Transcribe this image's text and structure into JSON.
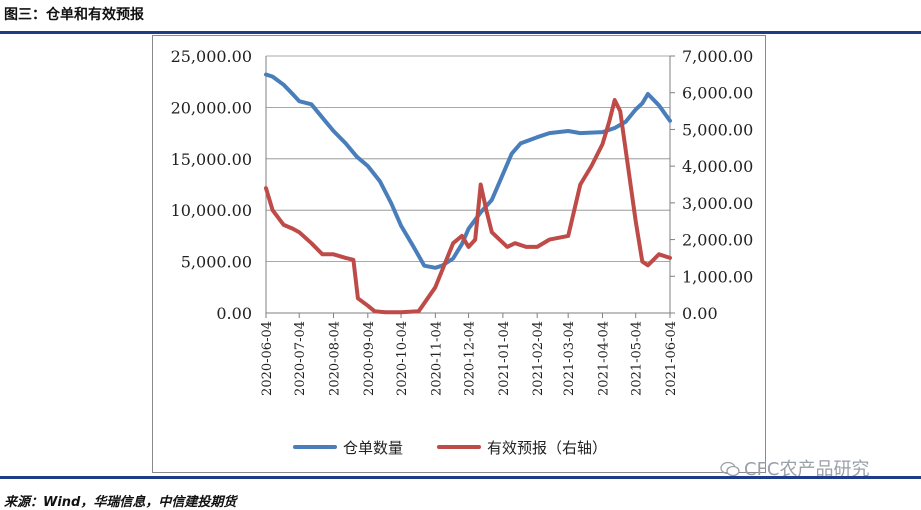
{
  "figure": {
    "title": "图三：仓单和有效预报",
    "source": "来源：Wind，华瑞信息，中信建投期货",
    "watermark": "CFC农产品研究",
    "watermark_icon": "wechat-icon"
  },
  "colors": {
    "series1": "#4a7ebb",
    "series2": "#be4b48",
    "accent": "#1f3c88"
  },
  "chart_data": {
    "type": "line",
    "grid": true,
    "legend_position": "bottom",
    "x_ticks": [
      "2020-06-04",
      "2020-07-04",
      "2020-08-04",
      "2020-09-04",
      "2020-10-04",
      "2020-11-04",
      "2020-12-04",
      "2021-01-04",
      "2021-02-04",
      "2021-03-04",
      "2021-04-04",
      "2021-05-04",
      "2021-06-04"
    ],
    "y_left": {
      "ylim": [
        0,
        25000
      ],
      "ticks": [
        "0.00",
        "5,000.00",
        "10,000.00",
        "15,000.00",
        "20,000.00",
        "25,000.00"
      ]
    },
    "y_right": {
      "ylim": [
        0,
        7000
      ],
      "ticks": [
        "0.00",
        "1,000.00",
        "2,000.00",
        "3,000.00",
        "4,000.00",
        "5,000.00",
        "6,000.00",
        "7,000.00"
      ]
    },
    "series": [
      {
        "name": "仓单数量",
        "axis": "left",
        "x": [
          "2020-06-04",
          "2020-06-10",
          "2020-06-20",
          "2020-06-28",
          "2020-07-04",
          "2020-07-15",
          "2020-07-25",
          "2020-08-04",
          "2020-08-15",
          "2020-08-25",
          "2020-09-04",
          "2020-09-15",
          "2020-09-25",
          "2020-10-04",
          "2020-10-15",
          "2020-10-25",
          "2020-11-04",
          "2020-11-10",
          "2020-11-20",
          "2020-11-28",
          "2020-12-04",
          "2020-12-15",
          "2020-12-25",
          "2021-01-04",
          "2021-01-12",
          "2021-01-20",
          "2021-02-04",
          "2021-02-15",
          "2021-03-04",
          "2021-03-15",
          "2021-04-04",
          "2021-04-15",
          "2021-04-25",
          "2021-05-04",
          "2021-05-10",
          "2021-05-15",
          "2021-05-25",
          "2021-06-04"
        ],
        "values": [
          23200,
          23000,
          22200,
          21300,
          20600,
          20300,
          19000,
          17700,
          16500,
          15200,
          14300,
          12800,
          10700,
          8500,
          6500,
          4600,
          4400,
          4600,
          5300,
          6700,
          8200,
          9800,
          11000,
          13500,
          15500,
          16500,
          17100,
          17500,
          17700,
          17500,
          17600,
          18000,
          18600,
          19800,
          20400,
          21300,
          20200,
          18700
        ]
      },
      {
        "name": "有效预报（右轴）",
        "axis": "right",
        "x": [
          "2020-06-04",
          "2020-06-10",
          "2020-06-20",
          "2020-06-28",
          "2020-07-04",
          "2020-07-15",
          "2020-07-25",
          "2020-08-04",
          "2020-08-15",
          "2020-08-22",
          "2020-08-26",
          "2020-09-04",
          "2020-09-10",
          "2020-09-20",
          "2020-10-04",
          "2020-10-20",
          "2020-11-04",
          "2020-11-12",
          "2020-11-20",
          "2020-11-28",
          "2020-12-04",
          "2020-12-10",
          "2020-12-15",
          "2020-12-20",
          "2020-12-25",
          "2021-01-01",
          "2021-01-08",
          "2021-01-15",
          "2021-01-25",
          "2021-02-04",
          "2021-02-15",
          "2021-03-04",
          "2021-03-15",
          "2021-03-25",
          "2021-04-04",
          "2021-04-10",
          "2021-04-15",
          "2021-04-20",
          "2021-04-28",
          "2021-05-04",
          "2021-05-10",
          "2021-05-15",
          "2021-05-25",
          "2021-06-04"
        ],
        "values": [
          3400,
          2800,
          2400,
          2300,
          2200,
          1900,
          1600,
          1600,
          1500,
          1450,
          400,
          200,
          50,
          20,
          20,
          50,
          700,
          1300,
          1900,
          2100,
          1800,
          2000,
          3500,
          2800,
          2200,
          2000,
          1800,
          1900,
          1800,
          1800,
          2000,
          2100,
          3500,
          4000,
          4600,
          5200,
          5800,
          5500,
          3800,
          2500,
          1400,
          1300,
          1600,
          1500
        ]
      }
    ]
  }
}
